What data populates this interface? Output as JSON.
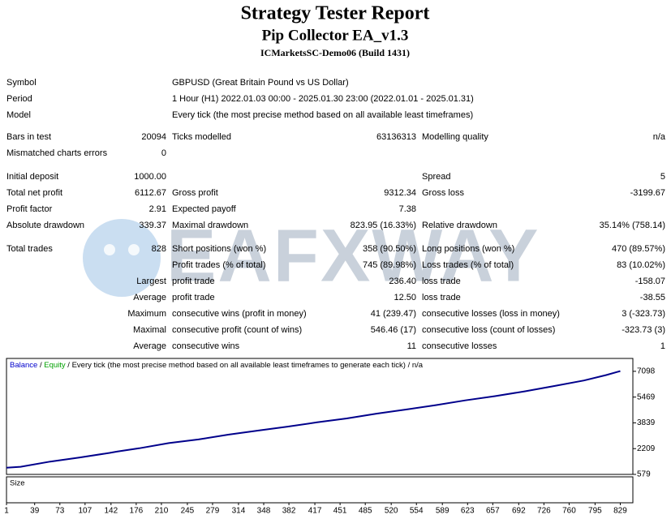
{
  "header": {
    "title": "Strategy Tester Report",
    "subtitle": "Pip Collector EA_v1.3",
    "build": "ICMarketsSC-Demo06 (Build 1431)"
  },
  "info": [
    [
      "Symbol",
      "GBPUSD (Great Britain Pound vs US Dollar)"
    ],
    [
      "Period",
      "1 Hour (H1) 2022.01.03 00:00 - 2025.01.30 23:00 (2022.01.01 - 2025.01.31)"
    ],
    [
      "Model",
      "Every tick (the most precise method based on all available least timeframes)"
    ]
  ],
  "stats": [
    [
      "Bars in test",
      "20094",
      "Ticks modelled",
      "63136313",
      "Modelling quality",
      "n/a"
    ],
    [
      "Mismatched charts errors",
      "0",
      null,
      null,
      null,
      null
    ],
    [
      "Initial deposit",
      "1000.00",
      null,
      null,
      "Spread",
      "5"
    ],
    [
      "Total net profit",
      "6112.67",
      "Gross profit",
      "9312.34",
      "Gross loss",
      "-3199.67"
    ],
    [
      "Profit factor",
      "2.91",
      "Expected payoff",
      "7.38",
      null,
      null
    ],
    [
      "Absolute drawdown",
      "339.37",
      "Maximal drawdown",
      "823.95 (16.33%)",
      "Relative drawdown",
      "35.14% (758.14)"
    ],
    [
      "Total trades",
      "828",
      "Short positions (won %)",
      "358 (90.50%)",
      "Long positions (won %)",
      "470 (89.57%)"
    ],
    [
      null,
      null,
      "Profit trades (% of total)",
      "745 (89.98%)",
      "Loss trades (% of total)",
      "83 (10.02%)"
    ],
    [
      "Largest",
      null,
      "profit trade",
      "236.40",
      "loss trade",
      "-158.07"
    ],
    [
      "Average",
      null,
      "profit trade",
      "12.50",
      "loss trade",
      "-38.55"
    ],
    [
      "Maximum",
      null,
      "consecutive wins (profit in money)",
      "41 (239.47)",
      "consecutive losses (loss in money)",
      "3 (-323.73)"
    ],
    [
      "Maximal",
      null,
      "consecutive profit (count of wins)",
      "546.46 (17)",
      "consecutive loss (count of losses)",
      "-323.73 (3)"
    ],
    [
      "Average",
      null,
      "consecutive wins",
      "11",
      "consecutive losses",
      "1"
    ]
  ],
  "watermark": "EAFXWAY",
  "chart_data": {
    "type": "line",
    "legend": [
      {
        "text": "Balance",
        "color": "#0000cc"
      },
      {
        "text": "Equity",
        "color": "#00a000"
      },
      {
        "text": "Every tick (the most precise method based on all available least timeframes to generate each tick)",
        "color": "#000000"
      },
      {
        "text": "n/a",
        "color": "#000000"
      }
    ],
    "size_label": "Size",
    "ylim": [
      579,
      7913
    ],
    "yticks": [
      579,
      2209,
      3839,
      5469,
      7098
    ],
    "xlim": [
      1,
      846
    ],
    "xticks": [
      1,
      39,
      73,
      107,
      142,
      176,
      210,
      245,
      279,
      314,
      348,
      382,
      417,
      451,
      485,
      520,
      554,
      589,
      623,
      657,
      692,
      726,
      760,
      795,
      829
    ],
    "series": [
      {
        "name": "Balance",
        "color": "#00008b",
        "x": [
          1,
          20,
          60,
          100,
          140,
          150,
          180,
          220,
          260,
          300,
          340,
          380,
          420,
          460,
          500,
          540,
          580,
          620,
          660,
          700,
          740,
          780,
          810,
          829
        ],
        "values": [
          1000,
          1060,
          1390,
          1650,
          1940,
          2020,
          2230,
          2560,
          2790,
          3090,
          3350,
          3600,
          3870,
          4120,
          4420,
          4680,
          4960,
          5260,
          5530,
          5830,
          6170,
          6520,
          6860,
          7112
        ]
      }
    ]
  }
}
